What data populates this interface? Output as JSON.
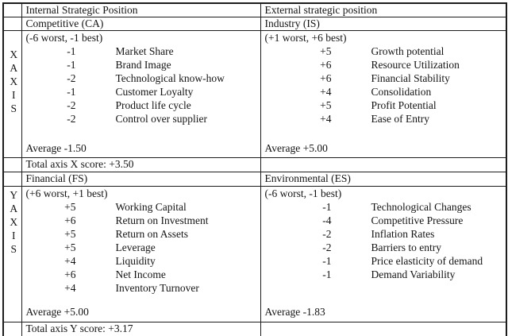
{
  "colors": {
    "border": "#1d1d1d",
    "text": "#141414",
    "background": "#ffffff"
  },
  "table": {
    "axis_x": {
      "letters": [
        "X",
        "A",
        "X",
        "I",
        "S"
      ]
    },
    "axis_y": {
      "letters": [
        "Y",
        "A",
        "X",
        "I",
        "S"
      ]
    },
    "header": {
      "internal": "Internal Strategic Position",
      "external": "External strategic position"
    },
    "sections": {
      "competitive": {
        "title": "Competitive (CA)",
        "scale": "(-6 worst, -1 best)",
        "items": [
          {
            "value": "-1",
            "label": "Market Share"
          },
          {
            "value": "-1",
            "label": "Brand Image"
          },
          {
            "value": "-2",
            "label": "Technological know-how"
          },
          {
            "value": "-1",
            "label": "Customer Loyalty"
          },
          {
            "value": "-2",
            "label": "Product life cycle"
          },
          {
            "value": "-2",
            "label": "Control over supplier"
          }
        ],
        "average": "Average -1.50"
      },
      "industry": {
        "title": "Industry (IS)",
        "scale": "(+1 worst, +6 best)",
        "items": [
          {
            "value": "+5",
            "label": "Growth potential"
          },
          {
            "value": "+6",
            "label": "Resource Utilization"
          },
          {
            "value": "+6",
            "label": "Financial Stability"
          },
          {
            "value": "+4",
            "label": "Consolidation"
          },
          {
            "value": "+5",
            "label": "Profit Potential"
          },
          {
            "value": "+4",
            "label": "Ease of Entry"
          }
        ],
        "average": "Average +5.00"
      },
      "financial": {
        "title": "Financial (FS)",
        "scale": "(+6 worst, +1 best)",
        "items": [
          {
            "value": "+5",
            "label": "Working Capital"
          },
          {
            "value": "+6",
            "label": "Return on Investment"
          },
          {
            "value": "+5",
            "label": "Return on Assets"
          },
          {
            "value": "+5",
            "label": "Leverage"
          },
          {
            "value": "+4",
            "label": "Liquidity"
          },
          {
            "value": "+6",
            "label": "Net Income"
          },
          {
            "value": "+4",
            "label": "Inventory Turnover"
          }
        ],
        "average": "Average +5.00"
      },
      "environmental": {
        "title": "Environmental (ES)",
        "scale": "(-6 worst, -1 best)",
        "items": [
          {
            "value": "-1",
            "label": "Technological Changes"
          },
          {
            "value": "-4",
            "label": "Competitive Pressure"
          },
          {
            "value": "-2",
            "label": "Inflation Rates"
          },
          {
            "value": "-2",
            "label": "Barriers to entry"
          },
          {
            "value": "-1",
            "label": "Price elasticity of demand"
          },
          {
            "value": "-1",
            "label": "Demand Variability"
          }
        ],
        "average": "Average -1.83"
      }
    },
    "totals": {
      "x": "Total axis X score: +3.50",
      "y": "Total axis Y score: +3.17"
    }
  }
}
